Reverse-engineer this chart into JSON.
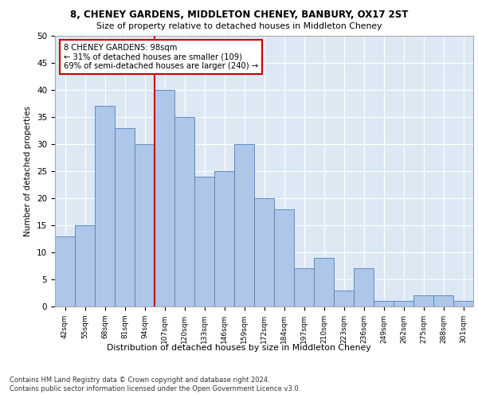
{
  "title_line1": "8, CHENEY GARDENS, MIDDLETON CHENEY, BANBURY, OX17 2ST",
  "title_line2": "Size of property relative to detached houses in Middleton Cheney",
  "xlabel": "Distribution of detached houses by size in Middleton Cheney",
  "ylabel": "Number of detached properties",
  "categories": [
    "42sqm",
    "55sqm",
    "68sqm",
    "81sqm",
    "94sqm",
    "107sqm",
    "120sqm",
    "133sqm",
    "146sqm",
    "159sqm",
    "172sqm",
    "184sqm",
    "197sqm",
    "210sqm",
    "223sqm",
    "236sqm",
    "249sqm",
    "262sqm",
    "275sqm",
    "288sqm",
    "301sqm"
  ],
  "values": [
    13,
    15,
    37,
    33,
    30,
    40,
    35,
    24,
    25,
    30,
    20,
    18,
    7,
    9,
    3,
    7,
    1,
    1,
    2,
    2,
    1
  ],
  "bar_color": "#aec6e8",
  "bar_edge_color": "#4f81bd",
  "vline_x": 4.5,
  "vline_color": "#cc0000",
  "annotation_text": "8 CHENEY GARDENS: 98sqm\n← 31% of detached houses are smaller (109)\n69% of semi-detached houses are larger (240) →",
  "annotation_box_color": "#cc0000",
  "ylim": [
    0,
    50
  ],
  "yticks": [
    0,
    5,
    10,
    15,
    20,
    25,
    30,
    35,
    40,
    45,
    50
  ],
  "background_color": "#dde8f5",
  "footer_line1": "Contains HM Land Registry data © Crown copyright and database right 2024.",
  "footer_line2": "Contains public sector information licensed under the Open Government Licence v3.0."
}
